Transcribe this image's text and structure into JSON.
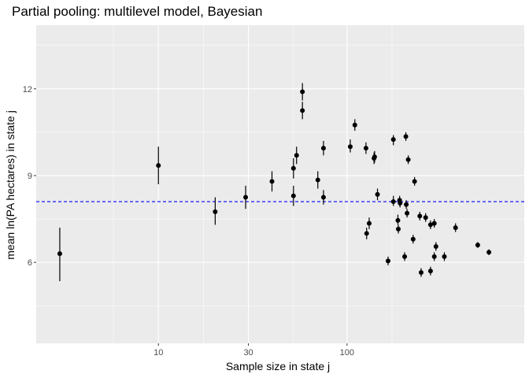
{
  "chart_data": {
    "type": "scatter",
    "title": "Partial pooling: multilevel model, Bayesian",
    "xlabel": "Sample size in state j",
    "ylabel": "mean ln(PA hectares) in state j",
    "x_scale": "log10",
    "xlim": [
      2.25,
      870
    ],
    "ylim": [
      3.2,
      14.2
    ],
    "x_ticks": [
      10,
      30,
      100
    ],
    "x_tick_labels": [
      "10",
      "30",
      "100"
    ],
    "y_ticks": [
      6,
      9,
      12
    ],
    "y_tick_labels": [
      "6",
      "9",
      "12"
    ],
    "grid": true,
    "reference_line": {
      "y": 8.1,
      "style": "dashed",
      "color": "#0000ff"
    },
    "colors": {
      "panel": "#ebebeb",
      "grid": "#ffffff",
      "points": "#000000",
      "reference": "#0000ff"
    },
    "points": [
      {
        "x": 3,
        "y": 6.3,
        "lo": 5.35,
        "hi": 7.2
      },
      {
        "x": 10,
        "y": 9.35,
        "lo": 8.7,
        "hi": 10.0
      },
      {
        "x": 20,
        "y": 7.75,
        "lo": 7.3,
        "hi": 8.25
      },
      {
        "x": 29,
        "y": 8.25,
        "lo": 7.85,
        "hi": 8.65
      },
      {
        "x": 40,
        "y": 8.8,
        "lo": 8.45,
        "hi": 9.15
      },
      {
        "x": 52,
        "y": 8.3,
        "lo": 7.95,
        "hi": 8.65
      },
      {
        "x": 52,
        "y": 9.25,
        "lo": 8.9,
        "hi": 9.6
      },
      {
        "x": 54,
        "y": 9.7,
        "lo": 9.4,
        "hi": 10.0
      },
      {
        "x": 58,
        "y": 11.9,
        "lo": 11.6,
        "hi": 12.2
      },
      {
        "x": 58,
        "y": 11.25,
        "lo": 10.95,
        "hi": 11.55
      },
      {
        "x": 70,
        "y": 8.85,
        "lo": 8.55,
        "hi": 9.15
      },
      {
        "x": 75,
        "y": 9.95,
        "lo": 9.7,
        "hi": 10.2
      },
      {
        "x": 75,
        "y": 8.25,
        "lo": 8.0,
        "hi": 8.5
      },
      {
        "x": 104,
        "y": 10.0,
        "lo": 9.8,
        "hi": 10.25
      },
      {
        "x": 110,
        "y": 10.75,
        "lo": 10.55,
        "hi": 10.95
      },
      {
        "x": 126,
        "y": 9.95,
        "lo": 9.75,
        "hi": 10.15
      },
      {
        "x": 127,
        "y": 7.0,
        "lo": 6.8,
        "hi": 7.2
      },
      {
        "x": 131,
        "y": 7.35,
        "lo": 7.15,
        "hi": 7.55
      },
      {
        "x": 139,
        "y": 9.6,
        "lo": 9.4,
        "hi": 9.8
      },
      {
        "x": 140,
        "y": 9.65,
        "lo": 9.45,
        "hi": 9.85
      },
      {
        "x": 145,
        "y": 8.35,
        "lo": 8.15,
        "hi": 8.55
      },
      {
        "x": 165,
        "y": 6.05,
        "lo": 5.9,
        "hi": 6.2
      },
      {
        "x": 176,
        "y": 8.1,
        "lo": 7.95,
        "hi": 8.3
      },
      {
        "x": 176,
        "y": 10.25,
        "lo": 10.05,
        "hi": 10.4
      },
      {
        "x": 186,
        "y": 7.45,
        "lo": 7.3,
        "hi": 7.65
      },
      {
        "x": 187,
        "y": 7.15,
        "lo": 7.0,
        "hi": 7.3
      },
      {
        "x": 190,
        "y": 8.15,
        "lo": 7.95,
        "hi": 8.3
      },
      {
        "x": 191,
        "y": 8.05,
        "lo": 7.9,
        "hi": 8.2
      },
      {
        "x": 202,
        "y": 6.2,
        "lo": 6.05,
        "hi": 6.35
      },
      {
        "x": 205,
        "y": 10.35,
        "lo": 10.2,
        "hi": 10.5
      },
      {
        "x": 206,
        "y": 8.0,
        "lo": 7.85,
        "hi": 8.15
      },
      {
        "x": 208,
        "y": 7.7,
        "lo": 7.55,
        "hi": 7.85
      },
      {
        "x": 211,
        "y": 9.55,
        "lo": 9.4,
        "hi": 9.7
      },
      {
        "x": 224,
        "y": 6.8,
        "lo": 6.65,
        "hi": 6.95
      },
      {
        "x": 228,
        "y": 8.8,
        "lo": 8.65,
        "hi": 8.95
      },
      {
        "x": 243,
        "y": 7.6,
        "lo": 7.45,
        "hi": 7.75
      },
      {
        "x": 247,
        "y": 5.65,
        "lo": 5.5,
        "hi": 5.8
      },
      {
        "x": 261,
        "y": 7.55,
        "lo": 7.4,
        "hi": 7.7
      },
      {
        "x": 277,
        "y": 7.3,
        "lo": 7.15,
        "hi": 7.45
      },
      {
        "x": 277,
        "y": 5.7,
        "lo": 5.55,
        "hi": 5.85
      },
      {
        "x": 290,
        "y": 6.2,
        "lo": 6.05,
        "hi": 6.35
      },
      {
        "x": 290,
        "y": 7.35,
        "lo": 7.2,
        "hi": 7.5
      },
      {
        "x": 296,
        "y": 6.55,
        "lo": 6.4,
        "hi": 6.7
      },
      {
        "x": 328,
        "y": 6.2,
        "lo": 6.05,
        "hi": 6.35
      },
      {
        "x": 376,
        "y": 7.2,
        "lo": 7.05,
        "hi": 7.35
      },
      {
        "x": 493,
        "y": 6.6,
        "lo": 6.5,
        "hi": 6.7
      },
      {
        "x": 565,
        "y": 6.35,
        "lo": 6.25,
        "hi": 6.45
      }
    ]
  }
}
